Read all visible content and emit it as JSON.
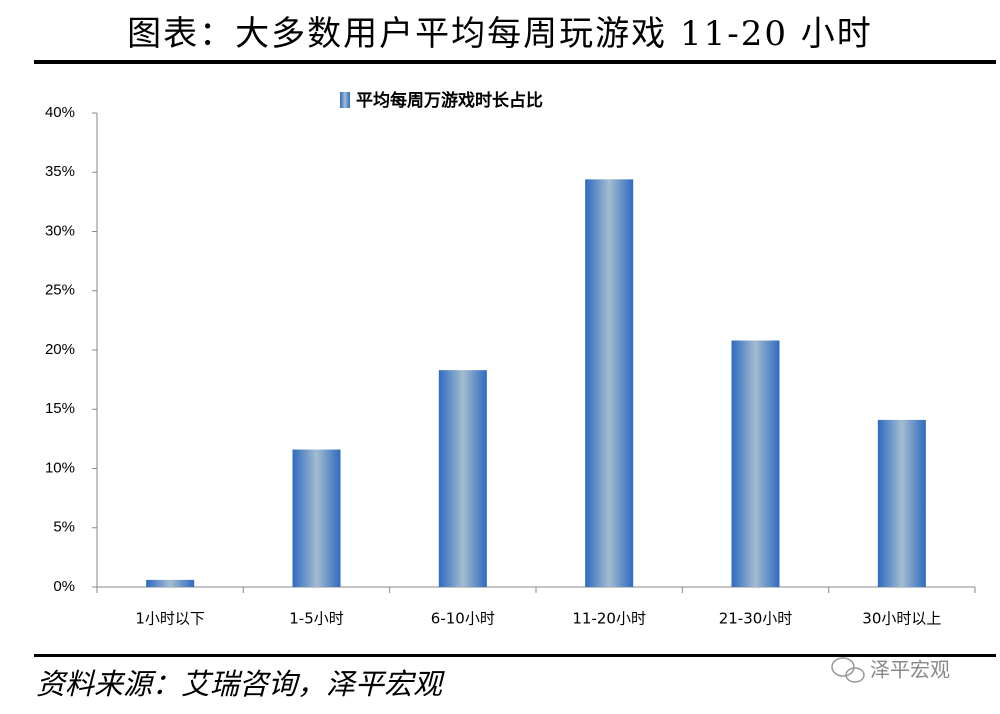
{
  "chart_data": {
    "type": "bar",
    "title": "图表：大多数用户平均每周玩游戏 11-20 小时",
    "categories": [
      "1小时以下",
      "1-5小时",
      "6-10小时",
      "11-20小时",
      "21-30小时",
      "30小时以上"
    ],
    "series": [
      {
        "name": "平均每周万游戏时长占比",
        "color": "#2e6bc0",
        "values": [
          0.6,
          11.6,
          18.3,
          34.4,
          20.8,
          14.1
        ]
      }
    ],
    "ylim": [
      0,
      40
    ],
    "yticks": [
      {
        "value": 0,
        "label": "0%"
      },
      {
        "value": 5,
        "label": "5%"
      },
      {
        "value": 10,
        "label": "10%"
      },
      {
        "value": 15,
        "label": "15%"
      },
      {
        "value": 20,
        "label": "20%"
      },
      {
        "value": 25,
        "label": "25%"
      },
      {
        "value": 30,
        "label": "30%"
      },
      {
        "value": 35,
        "label": "35%"
      },
      {
        "value": 40,
        "label": "40%"
      }
    ],
    "legend": "top"
  },
  "source": "资料来源：艾瑞咨询，泽平宏观",
  "watermark": "泽平宏观"
}
